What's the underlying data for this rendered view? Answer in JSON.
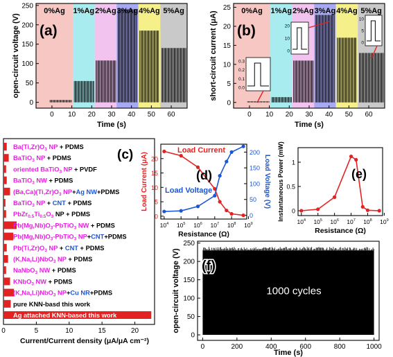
{
  "chart_data": [
    {
      "panel": "(a)",
      "type": "bar",
      "xlabel": "Time (s)",
      "ylabel": "open-circuit voltage (V)",
      "xlim": [
        -8,
        68
      ],
      "ylim": [
        -15,
        255
      ],
      "xticks": [
        0,
        10,
        20,
        30,
        40,
        50,
        60
      ],
      "yticks": [
        0,
        50,
        100,
        150,
        200,
        250
      ],
      "segments": [
        {
          "label": "0%Ag",
          "x": [
            -8,
            10.5
          ],
          "peak": 6,
          "color": "#f7c8c3"
        },
        {
          "label": "1%Ag",
          "x": [
            10.5,
            21.5
          ],
          "peak": 55,
          "color": "#a9ecf0"
        },
        {
          "label": "2%Ag",
          "x": [
            21.5,
            32.5
          ],
          "peak": 108,
          "color": "#f2c3ef"
        },
        {
          "label": "3%Ag",
          "x": [
            32.5,
            43.5
          ],
          "peak": 240,
          "color": "#a7a9f2"
        },
        {
          "label": "4%Ag",
          "x": [
            43.5,
            54.5
          ],
          "peak": 185,
          "color": "#f5f08a"
        },
        {
          "label": "5%Ag",
          "x": [
            54.5,
            68
          ],
          "peak": 140,
          "color": "#c9c9c9"
        }
      ]
    },
    {
      "panel": "(b)",
      "type": "bar",
      "xlabel": "Time (s)",
      "ylabel": "short-circuit current (μA)",
      "xlim": [
        -8,
        68
      ],
      "ylim": [
        -1.5,
        26
      ],
      "xticks": [
        0,
        10,
        20,
        30,
        40,
        50,
        60
      ],
      "yticks": [
        0,
        5,
        10,
        15,
        20,
        25
      ],
      "segments": [
        {
          "label": "0%Ag",
          "x": [
            -8,
            10.5
          ],
          "peak": 0.3,
          "color": "#f7c8c3"
        },
        {
          "label": "1%Ag",
          "x": [
            10.5,
            21.5
          ],
          "peak": 1.4,
          "color": "#a9ecf0"
        },
        {
          "label": "2%Ag",
          "x": [
            21.5,
            32.5
          ],
          "peak": 11,
          "color": "#f2c3ef"
        },
        {
          "label": "3%Ag",
          "x": [
            32.5,
            43.5
          ],
          "peak": 23,
          "color": "#a7a9f2"
        },
        {
          "label": "4%Ag",
          "x": [
            43.5,
            54.5
          ],
          "peak": 17,
          "color": "#f5f08a"
        },
        {
          "label": "5%Ag",
          "x": [
            54.5,
            68
          ],
          "peak": 13,
          "color": "#c9c9c9"
        }
      ],
      "insets": [
        {
          "yticks": [
            "0.3",
            "0.2",
            "0.1",
            "0.0"
          ]
        },
        {
          "yticks": [
            "20",
            "10",
            "0"
          ]
        },
        {
          "yticks": [
            "10",
            "5",
            "0"
          ]
        }
      ]
    },
    {
      "panel": "(c)",
      "type": "bar",
      "xlabel": "Current/Current density (μA/μA cm⁻²)",
      "xlim": [
        0,
        23
      ],
      "xticks": [
        0,
        5,
        10,
        15,
        20
      ],
      "categories": [
        [
          {
            "t": "Ba(Ti,Zr)O"
          },
          {
            "t": "3",
            "sub": true
          },
          {
            "t": " NP"
          },
          {
            "t": " + PDMS",
            "k": 1
          }
        ],
        [
          {
            "t": "BaTiO"
          },
          {
            "t": "3",
            "sub": true
          },
          {
            "t": " NP"
          },
          {
            "t": " + PDMS",
            "k": 1
          }
        ],
        [
          {
            "t": "oriented BaTiO"
          },
          {
            "t": "3",
            "sub": true
          },
          {
            "t": " NP"
          },
          {
            "t": " + PVDF",
            "k": 1
          }
        ],
        [
          {
            "t": "BaTiO"
          },
          {
            "t": "3",
            "sub": true
          },
          {
            "t": " NW"
          },
          {
            "t": " + PDMS",
            "k": 1
          }
        ],
        [
          {
            "t": "(Ba,Ca)(Ti,Zr)O"
          },
          {
            "t": "3",
            "sub": true
          },
          {
            "t": " NP"
          },
          {
            "t": "+",
            "k": 1
          },
          {
            "t": "Ag NW",
            "k": 2
          },
          {
            "t": "+PDMS",
            "k": 1
          }
        ],
        [
          {
            "t": "BaTiO"
          },
          {
            "t": "3",
            "sub": true
          },
          {
            "t": " NP"
          },
          {
            "t": " + ",
            "k": 1
          },
          {
            "t": "CNT",
            "k": 2
          },
          {
            "t": " + PDMS",
            "k": 1
          }
        ],
        [
          {
            "t": "PbZr"
          },
          {
            "t": "0.5",
            "sub": true
          },
          {
            "t": "Ti"
          },
          {
            "t": "0.5",
            "sub": true
          },
          {
            "t": "O"
          },
          {
            "t": "3",
            "sub": true
          },
          {
            "t": " NP + PDMS",
            "k": 1
          }
        ],
        [
          {
            "t": "Pb(Mg,Nb)O"
          },
          {
            "t": "3",
            "sub": true
          },
          {
            "t": "-PbTiO"
          },
          {
            "t": "3",
            "sub": true
          },
          {
            "t": " NW"
          },
          {
            "t": " + PDMS",
            "k": 1
          }
        ],
        [
          {
            "t": "Pb(Mg,Nb)O"
          },
          {
            "t": "3",
            "sub": true
          },
          {
            "t": "-PbTiO"
          },
          {
            "t": "3",
            "sub": true
          },
          {
            "t": " NP"
          },
          {
            "t": "+",
            "k": 1
          },
          {
            "t": "CNT",
            "k": 2
          },
          {
            "t": "+PDMS",
            "k": 1
          }
        ],
        [
          {
            "t": "Pb(Ti,Zr)O"
          },
          {
            "t": "3",
            "sub": true
          },
          {
            "t": " NP"
          },
          {
            "t": " + ",
            "k": 1
          },
          {
            "t": "CNT",
            "k": 2
          },
          {
            "t": " + PDMS",
            "k": 1
          }
        ],
        [
          {
            "t": "(K,Na,Li)NbO"
          },
          {
            "t": "3",
            "sub": true
          },
          {
            "t": " NP"
          },
          {
            "t": " + PDMS",
            "k": 1
          }
        ],
        [
          {
            "t": "NaNbO"
          },
          {
            "t": "3",
            "sub": true
          },
          {
            "t": " NW"
          },
          {
            "t": " + PDMS",
            "k": 1
          }
        ],
        [
          {
            "t": "KNbO"
          },
          {
            "t": "3",
            "sub": true
          },
          {
            "t": " NW"
          },
          {
            "t": " + PDMS",
            "k": 1
          }
        ],
        [
          {
            "t": "(K,Na,Li)NbO"
          },
          {
            "t": "3",
            "sub": true
          },
          {
            "t": " NP"
          },
          {
            "t": "+",
            "k": 1
          },
          {
            "t": "Cu NR",
            "k": 2
          },
          {
            "t": "+PDMS",
            "k": 1
          }
        ],
        [
          {
            "t": "pure KNN-basd this work",
            "k": 1
          }
        ],
        [
          {
            "t": "Ag attached KNN-based this work",
            "k": 3
          }
        ]
      ],
      "values": [
        0.5,
        0.8,
        0.4,
        0.5,
        1.0,
        0.3,
        0.4,
        2.0,
        1.5,
        0.5,
        0.7,
        0.4,
        1.0,
        1.6,
        1.1,
        22.5
      ],
      "bar_color": "#e32222"
    },
    {
      "panel": "(d)",
      "type": "line",
      "xlabel": "Resistance (Ω)",
      "ylabel_left": "Load Current (μA)",
      "ylabel_right": "Load Voltage (V)",
      "xscale": "log",
      "xtick_exponents": [
        4,
        5,
        6,
        7,
        8,
        9
      ],
      "y_left_lim": [
        -1,
        25
      ],
      "y_left_ticks": [
        0,
        5,
        10,
        15,
        20
      ],
      "y_right_lim": [
        -12,
        225
      ],
      "y_right_ticks": [
        0,
        50,
        100,
        150,
        200
      ],
      "series": [
        {
          "name": "Load Current",
          "axis": "left",
          "color": "#e32222",
          "x": [
            10000,
            100000,
            1000000,
            10000000,
            20000000,
            50000000,
            100000000,
            500000000
          ],
          "y": [
            22.5,
            21.0,
            17.0,
            9.5,
            5.0,
            2.0,
            0.8,
            0.3
          ]
        },
        {
          "name": "Load Voltage",
          "axis": "right",
          "color": "#1a56d6",
          "x": [
            10000,
            100000,
            1000000,
            10000000,
            20000000,
            50000000,
            100000000,
            500000000
          ],
          "y": [
            12,
            14,
            28,
            62,
            125,
            170,
            200,
            218
          ]
        }
      ]
    },
    {
      "panel": "(e)",
      "type": "line",
      "xlabel": "Resistance (Ω)",
      "ylabel": "Instantaneous Power (mW)",
      "xscale": "log",
      "xtick_exponents": [
        4,
        5,
        6,
        7,
        8,
        9
      ],
      "ylim": [
        -0.1,
        1.3
      ],
      "yticks": [
        0.0,
        0.5,
        1.0
      ],
      "series": [
        {
          "name": "",
          "color": "#e32222",
          "x": [
            10000,
            100000,
            1000000,
            10000000,
            20000000,
            50000000,
            100000000,
            500000000
          ],
          "y": [
            0.0,
            0.03,
            0.28,
            1.12,
            1.05,
            0.08,
            0.01,
            0.0
          ]
        }
      ]
    },
    {
      "panel": "(f)",
      "type": "line",
      "xlabel": "Time (s)",
      "ylabel": "open-circuit voltage (V)",
      "annotation": "1000 cycles",
      "xlim": [
        -30,
        1030
      ],
      "ylim": [
        -15,
        255
      ],
      "xticks": [
        0,
        200,
        400,
        600,
        800,
        1000
      ],
      "yticks": [
        0,
        50,
        100,
        150,
        200,
        250
      ],
      "series": [
        {
          "name": "",
          "color": "#000000",
          "x_range": [
            0,
            1000
          ],
          "peak": 230
        }
      ]
    }
  ]
}
